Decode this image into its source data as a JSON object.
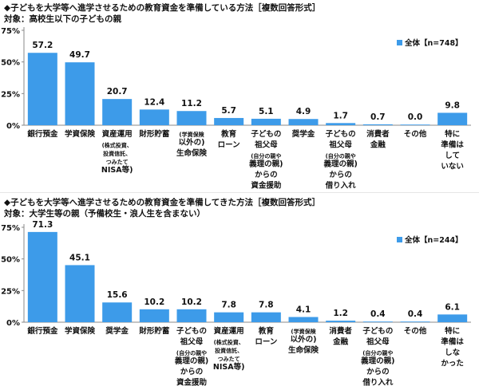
{
  "chart_data": [
    {
      "type": "bar",
      "title": "◆子どもを大学等へ進学させるための教育資金を準備している方法［複数回答形式］",
      "subtitle": "対象：高校生以下の子どもの親",
      "legend": "全体【n=748】",
      "legend_position": "top-right",
      "ylim": [
        0,
        75
      ],
      "yticks": [
        "0%",
        "25%",
        "50%",
        "75%"
      ],
      "grid": false,
      "categories": [
        [
          "銀行預金"
        ],
        [
          "学資保険"
        ],
        [
          "資産運用",
          "(株式投資、",
          "投資信託、",
          "つみたて",
          "NISA等)"
        ],
        [
          "財形貯蓄"
        ],
        [
          "(学資保険",
          "以外の)",
          "生命保険"
        ],
        [
          "教育",
          "ローン"
        ],
        [
          "子どもの",
          "祖父母",
          "(自分の親や",
          "義理の親)",
          "からの",
          "資金援助"
        ],
        [
          "奨学金"
        ],
        [
          "子どもの",
          "祖父母",
          "(自分の親や",
          "義理の親)",
          "からの",
          "借り入れ"
        ],
        [
          "消費者",
          "金融"
        ],
        [
          "その他"
        ],
        [
          "特に",
          "準備は",
          "して",
          "いない"
        ]
      ],
      "values": [
        57.2,
        49.7,
        20.7,
        12.4,
        11.2,
        5.7,
        5.1,
        4.9,
        1.7,
        0.7,
        0.0,
        9.8
      ],
      "value_labels": [
        "57.2",
        "49.7",
        "20.7",
        "12.4",
        "11.2",
        "5.7",
        "5.1",
        "4.9",
        "1.7",
        "0.7",
        "0.0",
        "9.8"
      ],
      "bar_color": "#3d9be9"
    },
    {
      "type": "bar",
      "title": "◆子どもを大学等へ進学させるための教育資金を準備してきた方法［複数回答形式］",
      "subtitle": "対象：大学生等の親（予備校生・浪人生を含まない）",
      "legend": "全体【n=244】",
      "legend_position": "top-right",
      "ylim": [
        0,
        75
      ],
      "yticks": [
        "0%",
        "25%",
        "50%",
        "75%"
      ],
      "grid": false,
      "categories": [
        [
          "銀行預金"
        ],
        [
          "学資保険"
        ],
        [
          "奨学金"
        ],
        [
          "財形貯蓄"
        ],
        [
          "子どもの",
          "祖父母",
          "(自分の親や",
          "義理の親)",
          "からの",
          "資金援助"
        ],
        [
          "資産運用",
          "(株式投資、",
          "投資信託、",
          "つみたて",
          "NISA等)"
        ],
        [
          "教育",
          "ローン"
        ],
        [
          "(学資保険",
          "以外の)",
          "生命保険"
        ],
        [
          "消費者",
          "金融"
        ],
        [
          "子どもの",
          "祖父母",
          "(自分の親や",
          "義理の親)",
          "からの",
          "借り入れ"
        ],
        [
          "その他"
        ],
        [
          "特に",
          "準備は",
          "しな",
          "かった"
        ]
      ],
      "values": [
        71.3,
        45.1,
        15.6,
        10.2,
        10.2,
        7.8,
        7.8,
        4.1,
        1.2,
        0.4,
        0.4,
        6.1
      ],
      "value_labels": [
        "71.3",
        "45.1",
        "15.6",
        "10.2",
        "10.2",
        "7.8",
        "7.8",
        "4.1",
        "1.2",
        "0.4",
        "0.4",
        "6.1"
      ],
      "bar_color": "#3d9be9"
    }
  ]
}
